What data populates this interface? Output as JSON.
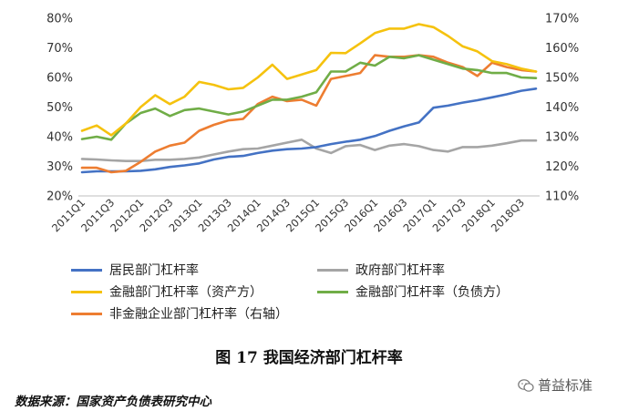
{
  "chart_data": {
    "type": "line",
    "caption": "图 17  我国经济部门杠杆率",
    "source": "数据来源：国家资产负债表研究中心",
    "watermark": "普益标准",
    "x": [
      "2011Q1",
      "2011Q2",
      "2011Q3",
      "2011Q4",
      "2012Q1",
      "2012Q2",
      "2012Q3",
      "2012Q4",
      "2013Q1",
      "2013Q2",
      "2013Q3",
      "2013Q4",
      "2014Q1",
      "2014Q2",
      "2014Q3",
      "2014Q4",
      "2015Q1",
      "2015Q2",
      "2015Q3",
      "2015Q4",
      "2016Q1",
      "2016Q2",
      "2016Q3",
      "2016Q4",
      "2017Q1",
      "2017Q2",
      "2017Q3",
      "2017Q4",
      "2018Q1",
      "2018Q2",
      "2018Q3",
      "2018Q4"
    ],
    "x_tick_labels": [
      "2011Q1",
      "2011Q3",
      "2012Q1",
      "2012Q3",
      "2013Q1",
      "2013Q3",
      "2014Q1",
      "2014Q3",
      "2015Q1",
      "2015Q3",
      "2016Q1",
      "2016Q3",
      "2017Q1",
      "2017Q3",
      "2018Q1",
      "2018Q3"
    ],
    "y_left": {
      "ticks": [
        "20%",
        "30%",
        "40%",
        "50%",
        "60%",
        "70%",
        "80%"
      ],
      "lim": [
        20,
        80
      ]
    },
    "y_right": {
      "ticks": [
        "110%",
        "120%",
        "130%",
        "140%",
        "150%",
        "160%",
        "170%"
      ],
      "lim": [
        110,
        170
      ]
    },
    "legend_placement": "bottom",
    "series": [
      {
        "name": "居民部门杠杆率",
        "axis": "left",
        "color": "#4472C4",
        "values": [
          28.0,
          28.3,
          28.3,
          28.3,
          28.5,
          29.0,
          29.8,
          30.3,
          31.0,
          32.3,
          33.2,
          33.5,
          34.5,
          35.3,
          35.8,
          36.0,
          36.5,
          37.5,
          38.3,
          39.0,
          40.2,
          42.0,
          43.5,
          44.8,
          49.8,
          50.5,
          51.5,
          52.3,
          53.3,
          54.3,
          55.5,
          56.2
        ]
      },
      {
        "name": "政府部门杠杆率",
        "axis": "left",
        "color": "#A5A5A5",
        "values": [
          32.5,
          32.3,
          32.0,
          31.8,
          31.8,
          32.2,
          32.2,
          32.5,
          33.0,
          34.0,
          35.0,
          35.8,
          36.0,
          37.0,
          38.0,
          39.0,
          36.0,
          34.5,
          36.8,
          37.2,
          35.5,
          37.0,
          37.5,
          36.8,
          35.5,
          35.0,
          36.5,
          36.5,
          37.0,
          37.8,
          38.7,
          38.7
        ]
      },
      {
        "name": "金融部门杠杆率（资产方）",
        "axis": "left",
        "color": "#F5C20E",
        "values": [
          42.0,
          43.8,
          40.5,
          44.5,
          50.0,
          54.0,
          51.0,
          53.5,
          58.5,
          57.5,
          56.0,
          56.5,
          60.0,
          64.3,
          59.5,
          61.0,
          62.5,
          68.3,
          68.2,
          71.5,
          75.0,
          76.5,
          76.5,
          78.0,
          77.0,
          74.0,
          70.5,
          68.8,
          65.5,
          64.5,
          63.0,
          62.0
        ]
      },
      {
        "name": "金融部门杠杆率（负债方）",
        "axis": "left",
        "color": "#70AD47",
        "values": [
          39.2,
          40.0,
          39.0,
          44.5,
          48.0,
          49.5,
          47.0,
          49.0,
          49.5,
          48.5,
          47.5,
          48.5,
          50.5,
          52.5,
          52.5,
          53.5,
          55.0,
          62.0,
          62.0,
          65.0,
          64.0,
          67.0,
          66.5,
          67.5,
          66.0,
          64.5,
          63.0,
          62.5,
          61.5,
          61.5,
          60.0,
          59.8
        ]
      },
      {
        "name": "非金融企业部门杠杆率（右轴）",
        "axis": "right",
        "color": "#ED7D31",
        "values": [
          119.5,
          119.5,
          118.0,
          118.5,
          121.5,
          125.0,
          127.0,
          128.0,
          132.0,
          134.0,
          135.5,
          136.0,
          141.0,
          143.5,
          142.0,
          142.5,
          140.5,
          149.5,
          150.5,
          151.5,
          157.5,
          157.0,
          157.0,
          157.5,
          157.0,
          155.0,
          153.5,
          150.5,
          155.0,
          153.5,
          152.5,
          152.0
        ]
      }
    ]
  }
}
